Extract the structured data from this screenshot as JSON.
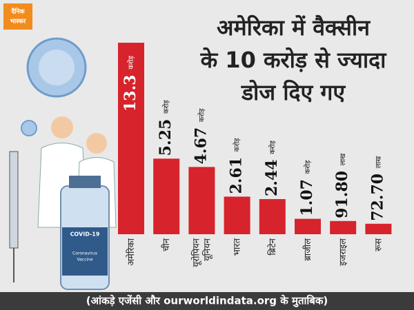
{
  "logo": {
    "lines": [
      "दैनिक",
      "भास्कर"
    ]
  },
  "illustration": {
    "bottle_label": "COVID-19",
    "bottle_text": [
      "Coronavirus",
      "Vaccine"
    ]
  },
  "chart_data": {
    "type": "bar",
    "title": [
      "अमेरिका में वैक्सीन",
      "के 10 करोड़ से ज्यादा",
      "डोज दिए गए"
    ],
    "categories": [
      "अमेरिका",
      "चीन",
      "यूरोपियन यूनियन",
      "भारत",
      "ब्रिटेन",
      "ब्राजील",
      "इजराइल",
      "रूस"
    ],
    "values": [
      13.3,
      5.25,
      4.67,
      2.61,
      2.44,
      1.07,
      0.918,
      0.727
    ],
    "value_labels": [
      "13.3 करोड़",
      "5.25 करोड़",
      "4.67 करोड़",
      "2.61 करोड़",
      "2.44 करोड़",
      "1.07 करोड़",
      "91.80 लाख",
      "72.70 लाख"
    ],
    "color": "#d7232b",
    "footnote": "(आंकड़े एजेंसी और ourworldindata.org के मुताबिक)"
  }
}
